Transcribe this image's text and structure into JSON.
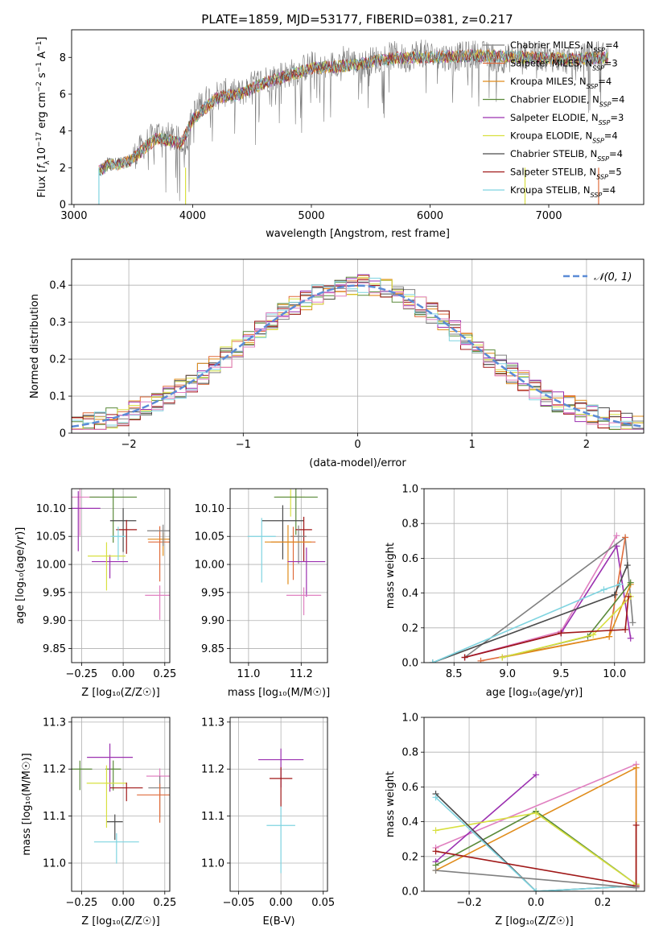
{
  "figure": {
    "title": "PLATE=1859, MJD=53177, FIBERID=0381, z=0.217"
  },
  "series_colors": [
    "#808080",
    "#e06c3c",
    "#e08c1a",
    "#5a8a3a",
    "#9b30b0",
    "#d8e040",
    "#4a4a4a",
    "#a01818",
    "#7fd4e0",
    "#e080c0"
  ],
  "chart_data": [
    {
      "id": "spectrum",
      "type": "line",
      "title": "PLATE=1859, MJD=53177, FIBERID=0381, z=0.217",
      "xlabel": "wavelength [Angstrom, rest frame]",
      "ylabel_parts": [
        "Flux [",
        "f",
        "λ",
        "10",
        "−17",
        " erg cm",
        "−2",
        " s",
        "−1",
        " A",
        "−1",
        "]"
      ],
      "xlim": [
        2980,
        7800
      ],
      "ylim": [
        0,
        9.5
      ],
      "xticks": [
        3000,
        4000,
        5000,
        6000,
        7000
      ],
      "yticks": [
        0,
        2,
        4,
        6,
        8
      ],
      "legend_position": "top-right",
      "legend": [
        {
          "pre": "Chabrier MILES, N",
          "sub": "SSP",
          "post": "=4",
          "color": "#808080"
        },
        {
          "pre": "Salpeter MILES, N",
          "sub": "SSP",
          "post": "=3",
          "color": "#e06c3c"
        },
        {
          "pre": "Kroupa MILES, N",
          "sub": "SSP",
          "post": "=4",
          "color": "#e08c1a"
        },
        {
          "pre": "Chabrier ELODIE, N",
          "sub": "SSP",
          "post": "=4",
          "color": "#5a8a3a"
        },
        {
          "pre": "Salpeter ELODIE, N",
          "sub": "SSP",
          "post": "=3",
          "color": "#9b30b0"
        },
        {
          "pre": "Kroupa ELODIE, N",
          "sub": "SSP",
          "post": "=4",
          "color": "#d8e040"
        },
        {
          "pre": "Chabrier STELIB, N",
          "sub": "SSP",
          "post": "=4",
          "color": "#4a4a4a"
        },
        {
          "pre": "Salpeter STELIB, N",
          "sub": "SSP",
          "post": "=5",
          "color": "#a01818"
        },
        {
          "pre": "Kroupa STELIB, N",
          "sub": "SSP",
          "post": "=4",
          "color": "#7fd4e0"
        }
      ],
      "data_continuum": {
        "x": [
          3210,
          3250,
          3300,
          3400,
          3500,
          3600,
          3700,
          3800,
          3900,
          3950,
          4000,
          4100,
          4200,
          4300,
          4400,
          4500,
          4600,
          4700,
          4800,
          4900,
          5000,
          5100,
          5200,
          5300,
          5400,
          5500,
          5600,
          5700,
          5800,
          5900,
          6000,
          6200,
          6400,
          6600,
          6800,
          7000,
          7200,
          7400,
          7500
        ],
        "y": [
          1.9,
          2.1,
          2.4,
          2.3,
          2.6,
          3.3,
          3.9,
          3.7,
          3.4,
          3.5,
          4.9,
          5.7,
          6.0,
          6.1,
          6.0,
          6.5,
          6.8,
          7.0,
          7.1,
          7.3,
          7.6,
          7.3,
          7.7,
          8.0,
          7.5,
          7.8,
          8.0,
          8.1,
          7.9,
          8.3,
          8.1,
          8.0,
          8.2,
          7.9,
          8.1,
          8.0,
          7.8,
          8.2,
          8.0
        ]
      },
      "model_continuum": {
        "x": [
          3210,
          3300,
          3400,
          3500,
          3600,
          3700,
          3800,
          3900,
          4000,
          4200,
          4400,
          4600,
          4800,
          5000,
          5200,
          5400,
          5600,
          5800,
          6000,
          6400,
          6800,
          7200,
          7500
        ],
        "y": [
          1.8,
          2.2,
          2.2,
          2.5,
          3.1,
          3.6,
          3.5,
          3.3,
          4.6,
          5.8,
          6.0,
          6.6,
          7.0,
          7.4,
          7.5,
          7.6,
          7.9,
          8.0,
          8.0,
          8.1,
          8.0,
          7.9,
          8.0
        ]
      }
    },
    {
      "id": "residuals",
      "type": "histogram",
      "xlabel": "(data-model)/error",
      "ylabel": "Normed distribution",
      "xlim": [
        -2.5,
        2.5
      ],
      "ylim": [
        0,
        0.47
      ],
      "xticks": [
        -2,
        -1,
        0,
        1,
        2
      ],
      "yticks": [
        0.0,
        0.1,
        0.2,
        0.3,
        0.4
      ],
      "legend_position": "top-right",
      "gaussian_label": "𝒩(0, 1)",
      "gaussian_color": "#5b8bd6",
      "bins": [
        -2.5,
        -2.4,
        -2.3,
        -2.2,
        -2.1,
        -2.0,
        -1.9,
        -1.8,
        -1.7,
        -1.6,
        -1.5,
        -1.4,
        -1.3,
        -1.2,
        -1.1,
        -1.0,
        -0.9,
        -0.8,
        -0.7,
        -0.6,
        -0.5,
        -0.4,
        -0.3,
        -0.2,
        -0.1,
        0.0,
        0.1,
        0.2,
        0.3,
        0.4,
        0.5,
        0.6,
        0.7,
        0.8,
        0.9,
        1.0,
        1.1,
        1.2,
        1.3,
        1.4,
        1.5,
        1.6,
        1.7,
        1.8,
        1.9,
        2.0,
        2.1,
        2.2,
        2.3,
        2.4,
        2.5
      ]
    },
    {
      "id": "age-vs-Z",
      "type": "errorbar",
      "xlabel": "Z [log₁₀(Z/Z☉)]",
      "ylabel": "age  [log₁₀(age/yr)]",
      "xlim": [
        -0.31,
        0.28
      ],
      "ylim": [
        9.825,
        10.135
      ],
      "xticks": [
        "-0.25",
        "0.00",
        "0.25"
      ],
      "yticks": [
        "9.85",
        "9.90",
        "9.95",
        "10.00",
        "10.05",
        "10.10"
      ],
      "points": [
        {
          "x": -0.26,
          "y": 10.12,
          "xerr": 0.0,
          "color": "#e080c0"
        },
        {
          "x": -0.06,
          "y": 10.12,
          "xerr": 0.0,
          "color": "#5a8a3a"
        },
        {
          "x": -0.27,
          "y": 10.1,
          "xerr": 0.0,
          "color": "#9b30b0"
        },
        {
          "x": 0.22,
          "y": 10.04,
          "color": "#e06c3c"
        },
        {
          "x": 0.24,
          "y": 10.045,
          "color": "#e08c1a"
        },
        {
          "x": 0.22,
          "y": 9.945,
          "color": "#e080c0"
        },
        {
          "x": -0.08,
          "y": 10.005,
          "color": "#9b30b0"
        },
        {
          "x": -0.1,
          "y": 10.015,
          "color": "#d8e040"
        },
        {
          "x": 0.0,
          "y": 10.078,
          "color": "#4a4a4a"
        },
        {
          "x": 0.02,
          "y": 10.062,
          "color": "#a01818"
        },
        {
          "x": -0.03,
          "y": 10.05,
          "color": "#7fd4e0"
        },
        {
          "x": 0.24,
          "y": 10.06,
          "color": "#808080"
        }
      ]
    },
    {
      "id": "age-vs-mass",
      "type": "errorbar",
      "xlabel": "mass [log₁₀(M/M☉)]",
      "xlim": [
        10.93,
        11.3
      ],
      "ylim": [
        9.825,
        10.135
      ],
      "xticks": [
        "11.0",
        "11.2"
      ],
      "yticks": [
        "9.85",
        "9.90",
        "9.95",
        "10.00",
        "10.05",
        "10.10"
      ],
      "points": [
        {
          "x": 11.16,
          "y": 10.12,
          "color": "#d8e040"
        },
        {
          "x": 11.18,
          "y": 10.12,
          "color": "#5a8a3a"
        },
        {
          "x": 11.13,
          "y": 10.078,
          "color": "#4a4a4a"
        },
        {
          "x": 11.21,
          "y": 10.062,
          "color": "#a01818"
        },
        {
          "x": 11.05,
          "y": 10.05,
          "color": "#7fd4e0"
        },
        {
          "x": 11.19,
          "y": 10.05,
          "color": "#808080"
        },
        {
          "x": 11.17,
          "y": 10.04,
          "color": "#e06c3c"
        },
        {
          "x": 11.15,
          "y": 10.04,
          "color": "#e08c1a"
        },
        {
          "x": 11.22,
          "y": 10.005,
          "color": "#9b30b0"
        },
        {
          "x": 11.21,
          "y": 9.945,
          "color": "#e080c0"
        }
      ]
    },
    {
      "id": "weight-vs-age",
      "type": "line",
      "xlabel": "age  [log₁₀(age/yr)]",
      "ylabel": "mass weight",
      "xlim": [
        8.22,
        10.28
      ],
      "ylim": [
        0,
        1.0
      ],
      "xticks": [
        "8.5",
        "9.0",
        "9.5",
        "10.0"
      ],
      "yticks": [
        "0.0",
        "0.2",
        "0.4",
        "0.6",
        "0.8",
        "1.0"
      ],
      "series": [
        {
          "color": "#e080c0",
          "x": [
            8.6,
            9.5,
            10.02
          ],
          "y": [
            0.03,
            0.18,
            0.73
          ]
        },
        {
          "color": "#9b30b0",
          "x": [
            8.6,
            9.5,
            10.02,
            10.15
          ],
          "y": [
            0.03,
            0.17,
            0.67,
            0.14
          ]
        },
        {
          "color": "#808080",
          "x": [
            8.6,
            10.1,
            10.17
          ],
          "y": [
            0.03,
            0.72,
            0.23
          ]
        },
        {
          "color": "#e06c3c",
          "x": [
            8.75,
            9.95,
            10.1
          ],
          "y": [
            0.01,
            0.15,
            0.72
          ]
        },
        {
          "color": "#e08c1a",
          "x": [
            8.95,
            9.95,
            10.15
          ],
          "y": [
            0.03,
            0.15,
            0.45
          ]
        },
        {
          "color": "#5a8a3a",
          "x": [
            8.95,
            9.75,
            10.15
          ],
          "y": [
            0.03,
            0.15,
            0.46
          ]
        },
        {
          "color": "#d8e040",
          "x": [
            8.95,
            9.8,
            10.15
          ],
          "y": [
            0.03,
            0.16,
            0.38
          ]
        },
        {
          "color": "#4a4a4a",
          "x": [
            8.3,
            10.0,
            10.12
          ],
          "y": [
            0.0,
            0.39,
            0.56
          ]
        },
        {
          "color": "#a01818",
          "x": [
            8.6,
            9.5,
            10.1,
            10.13
          ],
          "y": [
            0.03,
            0.17,
            0.19,
            0.38
          ]
        },
        {
          "color": "#7fd4e0",
          "x": [
            8.3,
            9.9,
            10.05
          ],
          "y": [
            0.0,
            0.42,
            0.45
          ]
        }
      ]
    },
    {
      "id": "mass-vs-Z",
      "type": "errorbar",
      "xlabel": "Z [log₁₀(Z/Z☉)]",
      "ylabel": "mass [log₁₀(M/M☉)]",
      "xlim": [
        -0.31,
        0.28
      ],
      "ylim": [
        10.94,
        11.31
      ],
      "xticks": [
        "-0.25",
        "0.00",
        "0.25"
      ],
      "yticks": [
        "11.0",
        "11.1",
        "11.2",
        "11.3"
      ],
      "points": [
        {
          "x": -0.26,
          "y": 11.2,
          "color": "#5a8a3a"
        },
        {
          "x": -0.06,
          "y": 11.2,
          "color": "#5a8a3a"
        },
        {
          "x": -0.08,
          "y": 11.225,
          "color": "#9b30b0"
        },
        {
          "x": -0.1,
          "y": 11.17,
          "color": "#d8e040"
        },
        {
          "x": 0.22,
          "y": 11.185,
          "color": "#e080c0"
        },
        {
          "x": 0.02,
          "y": 11.16,
          "color": "#a01818"
        },
        {
          "x": 0.22,
          "y": 11.16,
          "color": "#808080"
        },
        {
          "x": 0.22,
          "y": 11.145,
          "color": "#e06c3c"
        },
        {
          "x": -0.05,
          "y": 11.088,
          "color": "#4a4a4a"
        },
        {
          "x": -0.04,
          "y": 11.045,
          "color": "#7fd4e0"
        }
      ]
    },
    {
      "id": "mass-vs-EBV",
      "type": "errorbar",
      "xlabel": "E(B-V)",
      "xlim": [
        -0.06,
        0.055
      ],
      "ylim": [
        10.94,
        11.31
      ],
      "xticks": [
        "-0.05",
        "0.00",
        "0.05"
      ],
      "yticks": [
        "11.0",
        "11.1",
        "11.2",
        "11.3"
      ],
      "points": [
        {
          "x": 0.0,
          "y": 11.22,
          "color": "#9b30b0"
        },
        {
          "x": 0.0,
          "y": 11.18,
          "color": "#a01818"
        },
        {
          "x": 0.0,
          "y": 11.08,
          "color": "#7fd4e0"
        }
      ]
    },
    {
      "id": "weight-vs-Z",
      "type": "line",
      "xlabel": "Z [log₁₀(Z/Z☉)]",
      "ylabel": "mass weight",
      "xlim": [
        -0.335,
        0.325
      ],
      "ylim": [
        0,
        1.0
      ],
      "xticks": [
        "-0.2",
        "0.0",
        "0.2"
      ],
      "yticks": [
        "0.0",
        "0.2",
        "0.4",
        "0.6",
        "0.8",
        "1.0"
      ],
      "series": [
        {
          "color": "#e080c0",
          "x": [
            -0.3,
            0.3,
            0.3
          ],
          "y": [
            0.25,
            0.73,
            0.03
          ]
        },
        {
          "color": "#9b30b0",
          "x": [
            -0.3,
            0.0
          ],
          "y": [
            0.17,
            0.67
          ]
        },
        {
          "color": "#e08c1a",
          "x": [
            -0.3,
            0.3,
            0.3
          ],
          "y": [
            0.12,
            0.71,
            0.03
          ]
        },
        {
          "color": "#5a8a3a",
          "x": [
            -0.3,
            0.0,
            0.3
          ],
          "y": [
            0.15,
            0.46,
            0.04
          ]
        },
        {
          "color": "#d8e040",
          "x": [
            -0.3,
            0.0,
            0.3
          ],
          "y": [
            0.35,
            0.45,
            0.04
          ]
        },
        {
          "color": "#4a4a4a",
          "x": [
            -0.3,
            0.0,
            0.3
          ],
          "y": [
            0.56,
            0.0,
            0.03
          ]
        },
        {
          "color": "#7fd4e0",
          "x": [
            -0.3,
            0.0,
            0.3
          ],
          "y": [
            0.54,
            0.0,
            0.03
          ]
        },
        {
          "color": "#a01818",
          "x": [
            -0.3,
            0.3,
            0.3
          ],
          "y": [
            0.23,
            0.03,
            0.38
          ]
        },
        {
          "color": "#808080",
          "x": [
            -0.3,
            0.3
          ],
          "y": [
            0.12,
            0.02
          ]
        }
      ]
    }
  ]
}
